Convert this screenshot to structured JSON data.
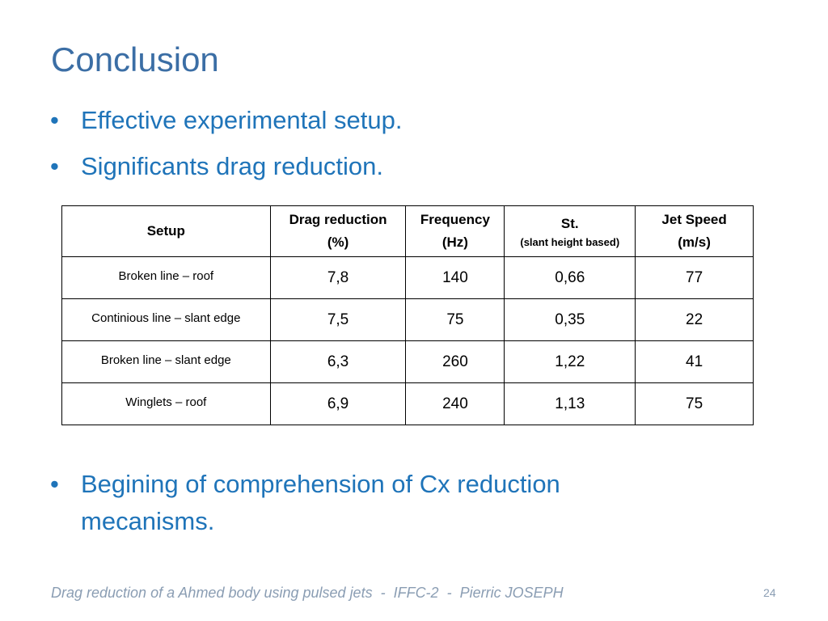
{
  "slide": {
    "title": "Conclusion",
    "bullets": [
      "Effective experimental setup.",
      "Significants drag reduction.",
      "Begining of comprehension of Cx reduction mecanisms."
    ],
    "bullet_glyph": "•"
  },
  "table": {
    "headers": {
      "setup": "Setup",
      "drag_reduction": "Drag reduction",
      "drag_reduction_unit": "(%)",
      "frequency": "Frequency",
      "frequency_unit": "(Hz)",
      "st": "St.",
      "st_note": "(slant height based)",
      "jet_speed": "Jet Speed",
      "jet_speed_unit": "(m/s)"
    },
    "rows": [
      {
        "setup": "Broken line – roof",
        "drag": "7,8",
        "freq": "140",
        "st": "0,66",
        "speed": "77"
      },
      {
        "setup": "Continious line – slant edge",
        "drag": "7,5",
        "freq": "75",
        "st": "0,35",
        "speed": "22"
      },
      {
        "setup": "Broken line – slant edge",
        "drag": "6,3",
        "freq": "260",
        "st": "1,22",
        "speed": "41"
      },
      {
        "setup": "Winglets – roof",
        "drag": "6,9",
        "freq": "240",
        "st": "1,13",
        "speed": "75"
      }
    ]
  },
  "footer": {
    "text": "Drag reduction of a Ahmed body using pulsed jets  -  IFFC-2  -  Pierric JOSEPH",
    "page_number": "24"
  },
  "colors": {
    "title": "#3b6ea5",
    "bullet_text": "#1f74b9",
    "footer": "#8a9db3"
  }
}
